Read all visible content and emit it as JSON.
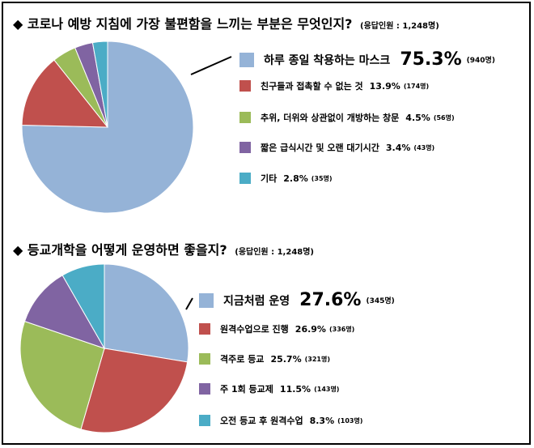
{
  "chart_data": [
    {
      "type": "pie",
      "marker": "◆",
      "title": "코로나 예방 지침에 가장 불편함을 느끼는 부분은 무엇인지?",
      "note": "(응답인원 : 1,248명)",
      "slices": [
        {
          "label": "하루 종일 착용하는 마스크",
          "pct_label": "75.3%",
          "count_label": "(940명)",
          "value": 75.3,
          "color": "#95b3d7"
        },
        {
          "label": "친구들과 접촉할 수 없는 것",
          "pct_label": "13.9%",
          "count_label": "(174명)",
          "value": 13.9,
          "color": "#c0504d"
        },
        {
          "label": "추위, 더위와 상관없이 개방하는 창문",
          "pct_label": "4.5%",
          "count_label": "(56명)",
          "value": 4.5,
          "color": "#9bbb59"
        },
        {
          "label": "짧은 급식시간 및 오랜 대기시간",
          "pct_label": "3.4%",
          "count_label": "(43명)",
          "value": 3.4,
          "color": "#8064a2"
        },
        {
          "label": "기타",
          "pct_label": "2.8%",
          "count_label": "(35명)",
          "value": 2.8,
          "color": "#4bacc6"
        }
      ]
    },
    {
      "type": "pie",
      "marker": "◆",
      "title": "등교개학을 어떻게 운영하면 좋을지?",
      "note": "(응답인원 : 1,248명)",
      "slices": [
        {
          "label": "지금처럼 운영",
          "pct_label": "27.6%",
          "count_label": "(345명)",
          "value": 27.6,
          "color": "#95b3d7"
        },
        {
          "label": "원격수업으로 진행",
          "pct_label": "26.9%",
          "count_label": "(336명)",
          "value": 26.9,
          "color": "#c0504d"
        },
        {
          "label": "격주로 등교",
          "pct_label": "25.7%",
          "count_label": "(321명)",
          "value": 25.7,
          "color": "#9bbb59"
        },
        {
          "label": "주 1회 등교제",
          "pct_label": "11.5%",
          "count_label": "(143명)",
          "value": 11.5,
          "color": "#8064a2"
        },
        {
          "label": "오전 등교 후 원격수업",
          "pct_label": "8.3%",
          "count_label": "(103명)",
          "value": 8.3,
          "color": "#4bacc6"
        }
      ]
    }
  ]
}
